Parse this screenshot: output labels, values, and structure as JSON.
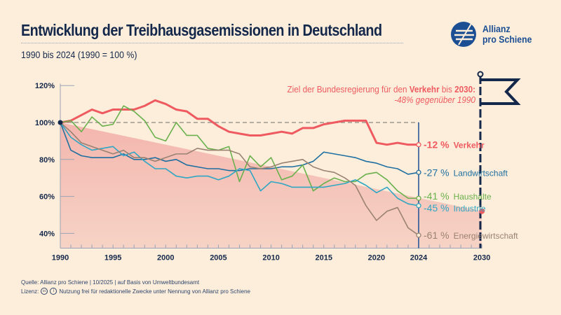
{
  "header": {
    "title": "Entwicklung der Treibhausgasemissionen in Deutschland",
    "subtitle": "1990 bis 2024 (1990 = 100 %)"
  },
  "logo": {
    "line1": "Allianz",
    "line2": "pro Schiene",
    "color": "#1c4e93"
  },
  "footer": {
    "source": "Quelle: Allianz pro Schiene | 10/2025 | auf Basis von Umweltbundesamt",
    "license_label": "Lizenz:",
    "license_text": "Nutzung frei für redaktionelle Zwecke unter Nennung von Allianz pro Schiene",
    "license_icons": [
      "cc-icon",
      "attribution-icon"
    ]
  },
  "chart_data": {
    "type": "line",
    "title": "Entwicklung der Treibhausgasemissionen in Deutschland",
    "xlim": [
      1990,
      2030
    ],
    "ylim": [
      32,
      122
    ],
    "x_ticks": [
      1990,
      1995,
      2000,
      2005,
      2010,
      2015,
      2020,
      2024,
      2030
    ],
    "y_ticks": [
      {
        "v": 40,
        "label": "40%"
      },
      {
        "v": 60,
        "label": "60%"
      },
      {
        "v": 80,
        "label": "80%"
      },
      {
        "v": 100,
        "label": "100%"
      },
      {
        "v": 120,
        "label": "120%"
      }
    ],
    "reference_line": 100,
    "target": {
      "text_pre": "Ziel der Bundesregierung für den ",
      "text_bold1": "Verkehr",
      "text_mid": " bis ",
      "text_bold2": "2030:",
      "text_line2": "-48% gegenüber 1990",
      "year": 2030,
      "value": 52,
      "color": "#ee5a5f",
      "fill": "#f4b6ae"
    },
    "x": [
      1990,
      1991,
      1992,
      1993,
      1994,
      1995,
      1996,
      1997,
      1998,
      1999,
      2000,
      2001,
      2002,
      2003,
      2004,
      2005,
      2006,
      2007,
      2008,
      2009,
      2010,
      2011,
      2012,
      2013,
      2014,
      2015,
      2016,
      2017,
      2018,
      2019,
      2020,
      2021,
      2022,
      2023,
      2024
    ],
    "series": [
      {
        "name": "Verkehr",
        "end_label": "-12 %",
        "color": "#ee5a5f",
        "bold": true,
        "values": [
          100,
          101,
          104,
          107,
          105,
          107,
          107,
          107,
          109,
          112,
          110,
          107,
          106,
          102,
          102,
          98,
          95,
          94,
          93,
          93,
          94,
          95,
          94,
          97,
          97,
          99,
          100,
          101,
          101,
          101,
          89,
          88,
          89,
          88,
          88
        ]
      },
      {
        "name": "Landwirtschaft",
        "end_label": "-27 %",
        "color": "#1f6fa0",
        "values": [
          100,
          85,
          82,
          81,
          81,
          81,
          83,
          80,
          80,
          81,
          79,
          80,
          77,
          76,
          75,
          75,
          74,
          74,
          75,
          75,
          75,
          76,
          76,
          77,
          79,
          84,
          83,
          82,
          81,
          79,
          78,
          76,
          75,
          72,
          73
        ]
      },
      {
        "name": "Haushalte",
        "end_label": "-41 %",
        "color": "#6ab04c",
        "values": [
          100,
          101,
          95,
          103,
          98,
          99,
          109,
          106,
          101,
          92,
          90,
          100,
          93,
          93,
          86,
          85,
          87,
          68,
          82,
          76,
          81,
          69,
          71,
          77,
          63,
          67,
          70,
          68,
          68,
          72,
          73,
          69,
          63,
          59,
          59
        ]
      },
      {
        "name": "Industrie",
        "end_label": "-45 %",
        "color": "#2fa6c4",
        "values": [
          100,
          92,
          88,
          85,
          86,
          87,
          82,
          84,
          79,
          75,
          75,
          71,
          70,
          71,
          71,
          69,
          71,
          75,
          74,
          63,
          68,
          67,
          65,
          65,
          65,
          65,
          66,
          67,
          69,
          66,
          62,
          65,
          59,
          56,
          55
        ]
      },
      {
        "name": "Energiewirtschaft",
        "end_label": "-61 %",
        "color": "#9a8272",
        "values": [
          100,
          95,
          89,
          87,
          85,
          83,
          85,
          81,
          81,
          79,
          81,
          83,
          83,
          86,
          85,
          85,
          85,
          83,
          76,
          75,
          76,
          78,
          79,
          80,
          76,
          74,
          73,
          70,
          66,
          55,
          47,
          52,
          54,
          43,
          39
        ]
      }
    ],
    "axis_color": "#14284b",
    "grid": false,
    "legend": "end-labels"
  }
}
